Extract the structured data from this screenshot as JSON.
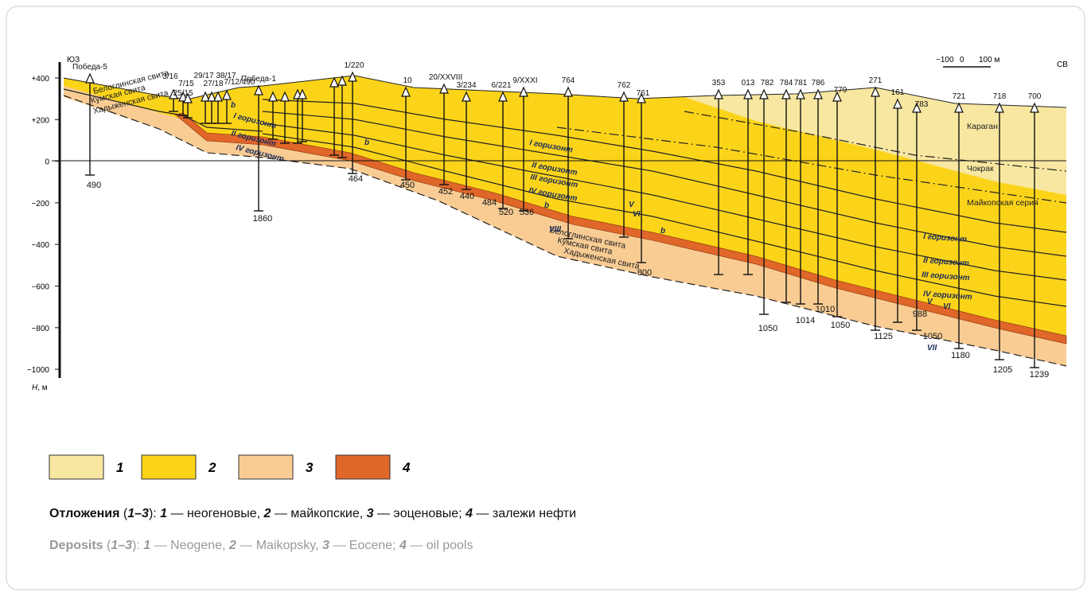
{
  "axis": {
    "ticks": [
      "+400",
      "+200",
      "0",
      "−200",
      "−400",
      "−600",
      "−800",
      "−1000"
    ],
    "label_var": "H",
    "label_unit": ", м"
  },
  "directions": {
    "left": "ЮЗ",
    "right": "СВ"
  },
  "scale_bar": [
    "−100",
    "0",
    "100 м"
  ],
  "wells": [
    "Победа-5",
    "3/16",
    "7/15",
    "25/15",
    "29/17",
    "27/18",
    "38/17",
    "7/12/490",
    "Победа-1",
    "1/220",
    "10",
    "20/XXVIII",
    "3/234",
    "6/221",
    "9/XXXI",
    "764",
    "762",
    "761",
    "353",
    "013",
    "782",
    "784",
    "781",
    "786",
    "779",
    "271",
    "161",
    "783",
    "721",
    "718",
    "700"
  ],
  "depths": [
    "490",
    "1860",
    "464",
    "450",
    "452",
    "440",
    "484",
    "520",
    "536",
    "800",
    "1050",
    "1014",
    "1010",
    "1050",
    "1125",
    "988",
    "1050",
    "1180",
    "1205",
    "1239"
  ],
  "formations": [
    "Белоглинская свита",
    "Кумская свита",
    "Хадыженская свита",
    "Белоглинская свита",
    "Кумская свита",
    "Хадыженская свита",
    "Караган",
    "Чокрак",
    "Майкопская серия"
  ],
  "horizons": [
    "I горизонт",
    "II горизонт",
    "IV горизонт",
    "I горизонт",
    "II горизонт",
    "III горизонт",
    "IV горизонт",
    "I горизонт",
    "II горизонт",
    "III горизонт",
    "IV горизонт",
    "b",
    "b",
    "b",
    "b",
    "VIII",
    "V",
    "VI",
    "VII",
    "V",
    "VI"
  ],
  "legend": [
    "1",
    "2",
    "3",
    "4"
  ],
  "caption_ru": [
    {
      "text": "Отложения",
      "style": "b"
    },
    {
      "text": " ("
    },
    {
      "text": "1–3",
      "style": "bi"
    },
    {
      "text": "): "
    },
    {
      "text": "1",
      "style": "bi"
    },
    {
      "text": " — неогеновые, "
    },
    {
      "text": "2",
      "style": "bi"
    },
    {
      "text": " — майкопские, "
    },
    {
      "text": "3",
      "style": "bi"
    },
    {
      "text": " — эоценовые; "
    },
    {
      "text": "4",
      "style": "bi"
    },
    {
      "text": " — залежи нефти"
    }
  ],
  "caption_en": [
    {
      "text": "Deposits",
      "style": "b"
    },
    {
      "text": " ("
    },
    {
      "text": "1–3",
      "style": "bi"
    },
    {
      "text": "): "
    },
    {
      "text": "1",
      "style": "bi"
    },
    {
      "text": " — Neogene, "
    },
    {
      "text": "2",
      "style": "bi"
    },
    {
      "text": " — Maikopsky, "
    },
    {
      "text": "3",
      "style": "bi"
    },
    {
      "text": " — Eocene; "
    },
    {
      "text": "4",
      "style": "bi"
    },
    {
      "text": " — oil pools"
    }
  ]
}
